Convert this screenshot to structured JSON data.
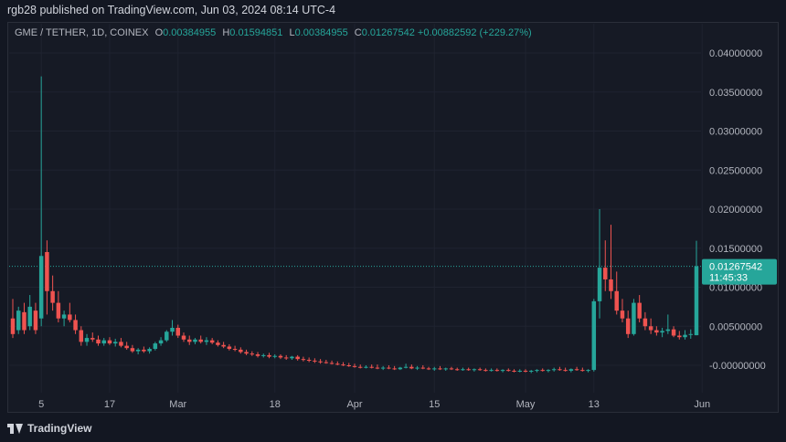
{
  "header": {
    "publish_text": "rgb28 published on TradingView.com, Jun 03, 2024 08:14 UTC-4"
  },
  "legend": {
    "symbol": "GME / TETHER, 1D, COINEX",
    "open_label": "O",
    "open": "0.00384955",
    "high_label": "H",
    "high": "0.01594851",
    "low_label": "L",
    "low": "0.00384955",
    "close_label": "C",
    "close": "0.01267542",
    "change": "+0.00882592 (+229.27%)"
  },
  "price_label": {
    "value": "0.01267542",
    "countdown": "11:45:33"
  },
  "footer": {
    "brand": "TradingView"
  },
  "colors": {
    "up": "#26a69a",
    "down": "#ef5350",
    "background": "#131722",
    "grid": "#1f2330",
    "price_line": "#26a69a"
  },
  "chart_data": {
    "type": "candlestick",
    "title": "GME / TETHER, 1D, COINEX",
    "ylim": [
      -0.0025,
      0.0425
    ],
    "y_ticks": [
      "0.04000000",
      "0.03500000",
      "0.03000000",
      "0.02500000",
      "0.02000000",
      "0.01500000",
      "0.01000000",
      "0.00500000",
      "-0.00000000"
    ],
    "y_tick_values": [
      0.04,
      0.035,
      0.03,
      0.025,
      0.02,
      0.015,
      0.01,
      0.005,
      0.0
    ],
    "x_ticks": [
      {
        "label": "5",
        "index": 5
      },
      {
        "label": "17",
        "index": 17
      },
      {
        "label": "Mar",
        "index": 29
      },
      {
        "label": "18",
        "index": 46
      },
      {
        "label": "Apr",
        "index": 60
      },
      {
        "label": "15",
        "index": 74
      },
      {
        "label": "May",
        "index": 90
      },
      {
        "label": "13",
        "index": 102
      },
      {
        "label": "Jun",
        "index": 121
      }
    ],
    "current_price": 0.01267542,
    "candles": [
      [
        0.006,
        0.0085,
        0.0035,
        0.004
      ],
      [
        0.0045,
        0.0075,
        0.004,
        0.007
      ],
      [
        0.0068,
        0.008,
        0.004,
        0.0045
      ],
      [
        0.005,
        0.009,
        0.0045,
        0.0075
      ],
      [
        0.007,
        0.008,
        0.004,
        0.0045
      ],
      [
        0.006,
        0.037,
        0.005,
        0.014
      ],
      [
        0.0145,
        0.016,
        0.0065,
        0.0095
      ],
      [
        0.0095,
        0.0115,
        0.007,
        0.008
      ],
      [
        0.008,
        0.0095,
        0.0055,
        0.006
      ],
      [
        0.006,
        0.007,
        0.005,
        0.0065
      ],
      [
        0.0065,
        0.008,
        0.0055,
        0.0058
      ],
      [
        0.0058,
        0.0065,
        0.004,
        0.0045
      ],
      [
        0.0045,
        0.005,
        0.0025,
        0.003
      ],
      [
        0.003,
        0.004,
        0.0025,
        0.0035
      ],
      [
        0.0035,
        0.0042,
        0.003,
        0.0033
      ],
      [
        0.0033,
        0.0038,
        0.0025,
        0.0028
      ],
      [
        0.0028,
        0.0035,
        0.0025,
        0.0032
      ],
      [
        0.0032,
        0.0036,
        0.0026,
        0.0028
      ],
      [
        0.0028,
        0.0034,
        0.0024,
        0.003
      ],
      [
        0.003,
        0.0035,
        0.0023,
        0.0025
      ],
      [
        0.0025,
        0.003,
        0.002,
        0.0022
      ],
      [
        0.0022,
        0.0026,
        0.0016,
        0.0018
      ],
      [
        0.0018,
        0.0022,
        0.0014,
        0.002
      ],
      [
        0.002,
        0.0024,
        0.0016,
        0.0018
      ],
      [
        0.0018,
        0.0023,
        0.0015,
        0.0021
      ],
      [
        0.0021,
        0.003,
        0.0019,
        0.0028
      ],
      [
        0.0028,
        0.0036,
        0.0025,
        0.0032
      ],
      [
        0.0032,
        0.0045,
        0.003,
        0.0043
      ],
      [
        0.0043,
        0.0058,
        0.0038,
        0.0048
      ],
      [
        0.0048,
        0.0052,
        0.0035,
        0.0038
      ],
      [
        0.0038,
        0.0042,
        0.003,
        0.0033
      ],
      [
        0.0033,
        0.0038,
        0.0026,
        0.003
      ],
      [
        0.003,
        0.0035,
        0.0027,
        0.0033
      ],
      [
        0.0033,
        0.0038,
        0.0028,
        0.003
      ],
      [
        0.003,
        0.0036,
        0.0026,
        0.0032
      ],
      [
        0.0032,
        0.0035,
        0.0027,
        0.0029
      ],
      [
        0.0029,
        0.0032,
        0.0024,
        0.0026
      ],
      [
        0.0026,
        0.003,
        0.0022,
        0.0024
      ],
      [
        0.0024,
        0.0027,
        0.0019,
        0.0021
      ],
      [
        0.0021,
        0.0025,
        0.0018,
        0.002
      ],
      [
        0.002,
        0.0023,
        0.0015,
        0.0017
      ],
      [
        0.0017,
        0.002,
        0.0013,
        0.0015
      ],
      [
        0.0015,
        0.0018,
        0.0012,
        0.0014
      ],
      [
        0.0014,
        0.0017,
        0.001,
        0.0012
      ],
      [
        0.0012,
        0.0015,
        0.001,
        0.0013
      ],
      [
        0.0013,
        0.0016,
        0.0009,
        0.0011
      ],
      [
        0.0011,
        0.0014,
        0.0009,
        0.0012
      ],
      [
        0.0012,
        0.0014,
        0.0008,
        0.001
      ],
      [
        0.001,
        0.0013,
        0.0007,
        0.0009
      ],
      [
        0.0009,
        0.0012,
        0.0007,
        0.0011
      ],
      [
        0.0011,
        0.0013,
        0.0006,
        0.0008
      ],
      [
        0.0008,
        0.0011,
        0.0005,
        0.0007
      ],
      [
        0.0007,
        0.001,
        0.0004,
        0.0006
      ],
      [
        0.0006,
        0.0009,
        0.0003,
        0.0005
      ],
      [
        0.0005,
        0.0008,
        0.0002,
        0.0004
      ],
      [
        0.0004,
        0.0007,
        0.0002,
        0.0003
      ],
      [
        0.0003,
        0.0006,
        0.0001,
        0.0002
      ],
      [
        0.0002,
        0.0005,
        0.0,
        0.0001
      ],
      [
        0.0001,
        0.0004,
        -0.0001,
        0.0
      ],
      [
        0.0,
        0.0003,
        -0.0002,
        -0.0001
      ],
      [
        -0.0001,
        0.0002,
        -0.0003,
        -0.0002
      ],
      [
        -0.0002,
        0.0001,
        -0.0004,
        -0.0003
      ],
      [
        -0.0003,
        0.0,
        -0.0004,
        -0.0002
      ],
      [
        -0.0002,
        0.0001,
        -0.0004,
        -0.0003
      ],
      [
        -0.0003,
        0.0001,
        -0.0005,
        -0.0004
      ],
      [
        -0.0004,
        -0.0001,
        -0.0006,
        -0.0003
      ],
      [
        -0.0003,
        0.0,
        -0.0005,
        -0.0004
      ],
      [
        -0.0004,
        -0.0001,
        -0.0006,
        -0.0005
      ],
      [
        -0.0005,
        -0.0002,
        -0.0006,
        -0.0003
      ],
      [
        -0.0003,
        0.0002,
        -0.0004,
        -0.0002
      ],
      [
        -0.0002,
        0.0001,
        -0.0005,
        -0.0004
      ],
      [
        -0.0004,
        -0.0001,
        -0.0006,
        -0.0003
      ],
      [
        -0.0003,
        0.0,
        -0.0005,
        -0.0004
      ],
      [
        -0.0004,
        -0.0002,
        -0.0006,
        -0.0005
      ],
      [
        -0.0005,
        -0.0002,
        -0.0007,
        -0.0004
      ],
      [
        -0.0004,
        -0.0001,
        -0.0006,
        -0.0005
      ],
      [
        -0.0005,
        -0.0003,
        -0.0007,
        -0.0004
      ],
      [
        -0.0004,
        -0.0002,
        -0.0006,
        -0.0005
      ],
      [
        -0.0005,
        -0.0003,
        -0.0007,
        -0.0006
      ],
      [
        -0.0006,
        -0.0003,
        -0.0007,
        -0.0005
      ],
      [
        -0.0005,
        -0.0003,
        -0.0007,
        -0.0006
      ],
      [
        -0.0006,
        -0.0004,
        -0.0008,
        -0.0005
      ],
      [
        -0.0005,
        -0.0003,
        -0.0007,
        -0.0006
      ],
      [
        -0.0006,
        -0.0004,
        -0.0008,
        -0.0007
      ],
      [
        -0.0007,
        -0.0004,
        -0.0008,
        -0.0006
      ],
      [
        -0.0006,
        -0.0004,
        -0.0008,
        -0.0007
      ],
      [
        -0.0007,
        -0.0005,
        -0.0009,
        -0.0006
      ],
      [
        -0.0006,
        -0.0004,
        -0.0008,
        -0.0007
      ],
      [
        -0.0007,
        -0.0005,
        -0.0009,
        -0.0008
      ],
      [
        -0.0008,
        -0.0005,
        -0.0009,
        -0.0007
      ],
      [
        -0.0007,
        -0.0005,
        -0.0009,
        -0.0008
      ],
      [
        -0.0008,
        -0.0006,
        -0.001,
        -0.0007
      ],
      [
        -0.0007,
        -0.0005,
        -0.0009,
        -0.0006
      ],
      [
        -0.0006,
        -0.0004,
        -0.0008,
        -0.0007
      ],
      [
        -0.0007,
        -0.0005,
        -0.0009,
        -0.0006
      ],
      [
        -0.0006,
        -0.0003,
        -0.0008,
        -0.0005
      ],
      [
        -0.0005,
        -0.0002,
        -0.0007,
        -0.0006
      ],
      [
        -0.0006,
        -0.0003,
        -0.0008,
        -0.0007
      ],
      [
        -0.0007,
        -0.0004,
        -0.0009,
        -0.0005
      ],
      [
        -0.0005,
        -0.0002,
        -0.0007,
        -0.0006
      ],
      [
        -0.0006,
        -0.0003,
        -0.0008,
        -0.0007
      ],
      [
        -0.0007,
        -0.0005,
        -0.0009,
        -0.0006
      ],
      [
        -0.0006,
        0.0085,
        -0.0008,
        0.0082
      ],
      [
        0.0082,
        0.02,
        0.006,
        0.0125
      ],
      [
        0.0125,
        0.016,
        0.0095,
        0.011
      ],
      [
        0.011,
        0.018,
        0.0085,
        0.0095
      ],
      [
        0.0095,
        0.012,
        0.0065,
        0.007
      ],
      [
        0.007,
        0.0085,
        0.0055,
        0.006
      ],
      [
        0.006,
        0.007,
        0.0035,
        0.004
      ],
      [
        0.004,
        0.0085,
        0.0038,
        0.008
      ],
      [
        0.008,
        0.009,
        0.0055,
        0.006
      ],
      [
        0.006,
        0.0068,
        0.0045,
        0.005
      ],
      [
        0.005,
        0.006,
        0.004,
        0.0045
      ],
      [
        0.0045,
        0.005,
        0.0038,
        0.0042
      ],
      [
        0.0042,
        0.0048,
        0.0036,
        0.0044
      ],
      [
        0.0044,
        0.0065,
        0.004,
        0.0046
      ],
      [
        0.0046,
        0.005,
        0.0036,
        0.0038
      ],
      [
        0.0038,
        0.0044,
        0.0033,
        0.0036
      ],
      [
        0.0036,
        0.0045,
        0.0033,
        0.0039
      ],
      [
        0.0039,
        0.0046,
        0.0034,
        0.004
      ],
      [
        0.00384955,
        0.01594851,
        0.00384955,
        0.01267542
      ]
    ]
  }
}
